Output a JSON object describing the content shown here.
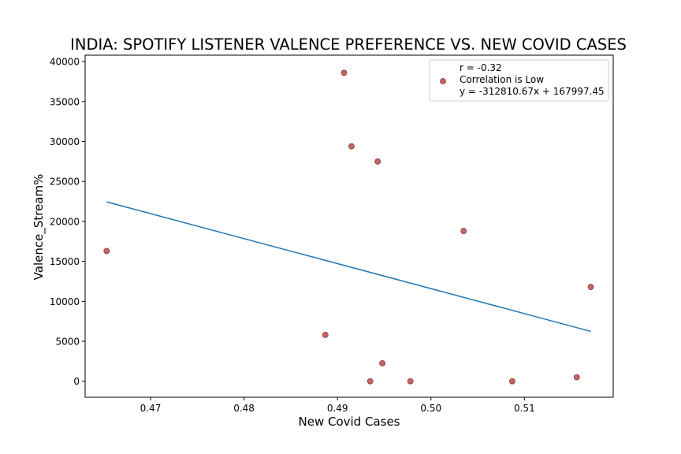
{
  "chart_data": {
    "type": "scatter",
    "title": "INDIA: SPOTIFY LISTENER VALENCE PREFERENCE VS. NEW COVID CASES",
    "xlabel": "New Covid Cases",
    "ylabel": "Valence_Stream%",
    "xlim": [
      0.463,
      0.5195
    ],
    "ylim": [
      -2000,
      40800
    ],
    "xticks": [
      "0.47",
      "0.48",
      "0.49",
      "0.50",
      "0.51"
    ],
    "yticks": [
      "0",
      "5000",
      "10000",
      "15000",
      "20000",
      "25000",
      "30000",
      "35000",
      "40000"
    ],
    "grid": false,
    "legend_position": "top-right",
    "legend_lines": [
      "r = -0.32",
      "Correlation is Low",
      "y = -312810.67x + 167997.45"
    ],
    "points": [
      {
        "x": 0.4653,
        "y": 16300
      },
      {
        "x": 0.4887,
        "y": 5800
      },
      {
        "x": 0.4907,
        "y": 38600
      },
      {
        "x": 0.4915,
        "y": 29400
      },
      {
        "x": 0.4935,
        "y": 0
      },
      {
        "x": 0.4943,
        "y": 27500
      },
      {
        "x": 0.4948,
        "y": 2250
      },
      {
        "x": 0.4978,
        "y": 0
      },
      {
        "x": 0.5035,
        "y": 18800
      },
      {
        "x": 0.5087,
        "y": 0
      },
      {
        "x": 0.5156,
        "y": 500
      },
      {
        "x": 0.5171,
        "y": 11800
      }
    ],
    "regression_line": {
      "slope": -312810.67,
      "intercept": 167997.45,
      "x_range": [
        0.4653,
        0.5171
      ]
    },
    "colors": {
      "points": "#c06666",
      "point_edge": "#8b3a3a",
      "line": "#1f77b4",
      "axis": "#000000"
    }
  }
}
